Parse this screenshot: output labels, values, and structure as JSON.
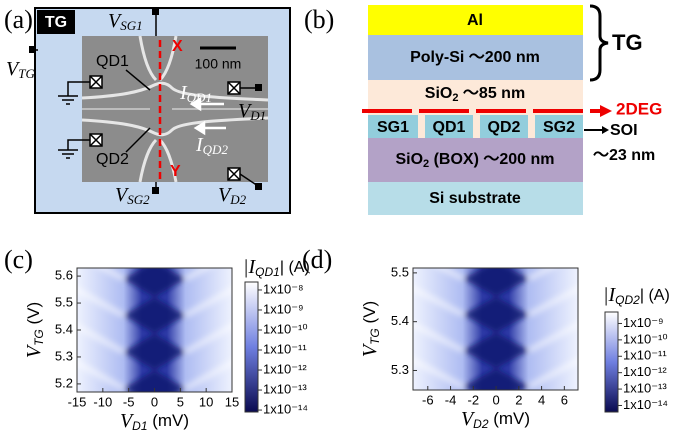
{
  "panel_a": {
    "label": "(a)",
    "tg_box": "TG",
    "v_sg1": {
      "main": "V",
      "sub": "SG1"
    },
    "v_tg": {
      "main": "V",
      "sub": "TG"
    },
    "v_d1": {
      "main": "V",
      "sub": "D1"
    },
    "v_sg2": {
      "main": "V",
      "sub": "SG2"
    },
    "v_d2": {
      "main": "V",
      "sub": "D2"
    },
    "qd1": "QD1",
    "qd2": "QD2",
    "scale": "100 nm",
    "i_qd1": {
      "main": "I",
      "sub": "QD1"
    },
    "i_qd2": {
      "main": "I",
      "sub": "QD2"
    },
    "x": "X",
    "y": "Y"
  },
  "panel_b": {
    "label": "(b)",
    "al": "Al",
    "poly": "Poly-Si ～200 nm",
    "sio2_top": {
      "main": "SiO",
      "sub": "2",
      "rest": " ～85 nm"
    },
    "gates": [
      "SG1",
      "QD1",
      "QD2",
      "SG2"
    ],
    "box": {
      "main": "SiO",
      "sub": "2",
      "rest": " (BOX) ～200 nm"
    },
    "substrate": "Si substrate",
    "tg": "TG",
    "deg": "2DEG",
    "soi": "SOI",
    "thickness": "～23 nm"
  },
  "chart_data": [
    {
      "type": "heatmap",
      "panel_label": "(c)",
      "x_label": {
        "main": "V",
        "sub": "D1",
        "rest": " (mV)"
      },
      "y_label": {
        "main": "V",
        "sub": "TG",
        "rest": " (V)"
      },
      "colorbar_label": {
        "main": "|I",
        "sub": "QD1",
        "rest": "| (A)"
      },
      "xlim": [
        -15,
        15
      ],
      "ylim": [
        5.17,
        5.63
      ],
      "xticks": [
        -15,
        -10,
        -5,
        0,
        5,
        10,
        15
      ],
      "yticks": [
        5.2,
        5.3,
        5.4,
        5.5,
        5.6
      ],
      "colorbar_scale": "log",
      "colorbar_lim": [
        8e-15,
        2.5e-08
      ],
      "colorbar_ticks": [
        {
          "value": 1e-08,
          "label": "1x10⁻⁸"
        },
        {
          "value": 1e-09,
          "label": "1x10⁻⁹"
        },
        {
          "value": 1e-10,
          "label": "1x10⁻¹⁰"
        },
        {
          "value": 1e-11,
          "label": "1x10⁻¹¹"
        },
        {
          "value": 1e-12,
          "label": "1x10⁻¹²"
        },
        {
          "value": 1e-13,
          "label": "1x10⁻¹³"
        },
        {
          "value": 1e-14,
          "label": "1x10⁻¹⁴"
        }
      ]
    },
    {
      "type": "heatmap",
      "panel_label": "(d)",
      "x_label": {
        "main": "V",
        "sub": "D2",
        "rest": " (mV)"
      },
      "y_label": {
        "main": "V",
        "sub": "TG",
        "rest": " (V)"
      },
      "colorbar_label": {
        "main": "|I",
        "sub": "QD2",
        "rest": "| (A)"
      },
      "xlim": [
        -7.3,
        7.2
      ],
      "ylim": [
        5.26,
        5.51
      ],
      "xticks": [
        -6,
        -4,
        -2,
        0,
        2,
        4,
        6
      ],
      "yticks": [
        5.3,
        5.4,
        5.5
      ],
      "colorbar_scale": "log",
      "colorbar_lim": [
        4e-15,
        5e-09
      ],
      "colorbar_ticks": [
        {
          "value": 1e-09,
          "label": "1x10⁻⁹"
        },
        {
          "value": 1e-10,
          "label": "1x10⁻¹⁰"
        },
        {
          "value": 1e-11,
          "label": "1x10⁻¹¹"
        },
        {
          "value": 1e-12,
          "label": "1x10⁻¹²"
        },
        {
          "value": 1e-13,
          "label": "1x10⁻¹³"
        },
        {
          "value": 1e-14,
          "label": "1x10⁻¹⁴"
        }
      ]
    }
  ]
}
